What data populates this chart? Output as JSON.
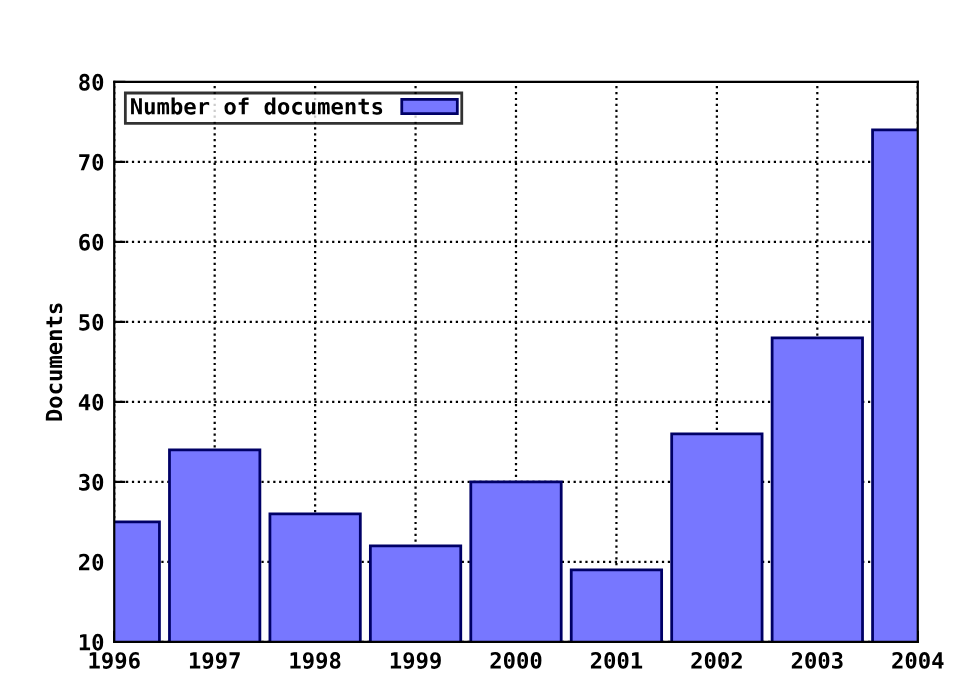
{
  "chart_data": {
    "type": "bar",
    "ylabel": "Documents",
    "x": [
      1996,
      1997,
      1998,
      1999,
      2000,
      2001,
      2002,
      2003,
      2004
    ],
    "series": [
      {
        "name": "Number of documents",
        "color": "#7777ff",
        "values": [
          25,
          34,
          26,
          22,
          30,
          19,
          36,
          48,
          74
        ]
      }
    ],
    "xlim": [
      1996,
      2004
    ],
    "xticks": [
      1996,
      1997,
      1998,
      1999,
      2000,
      2001,
      2002,
      2003,
      2004
    ],
    "ylim": [
      10,
      80
    ],
    "yticks": [
      10,
      20,
      30,
      40,
      50,
      60,
      70,
      80
    ],
    "grid": true,
    "legend": "top left"
  }
}
